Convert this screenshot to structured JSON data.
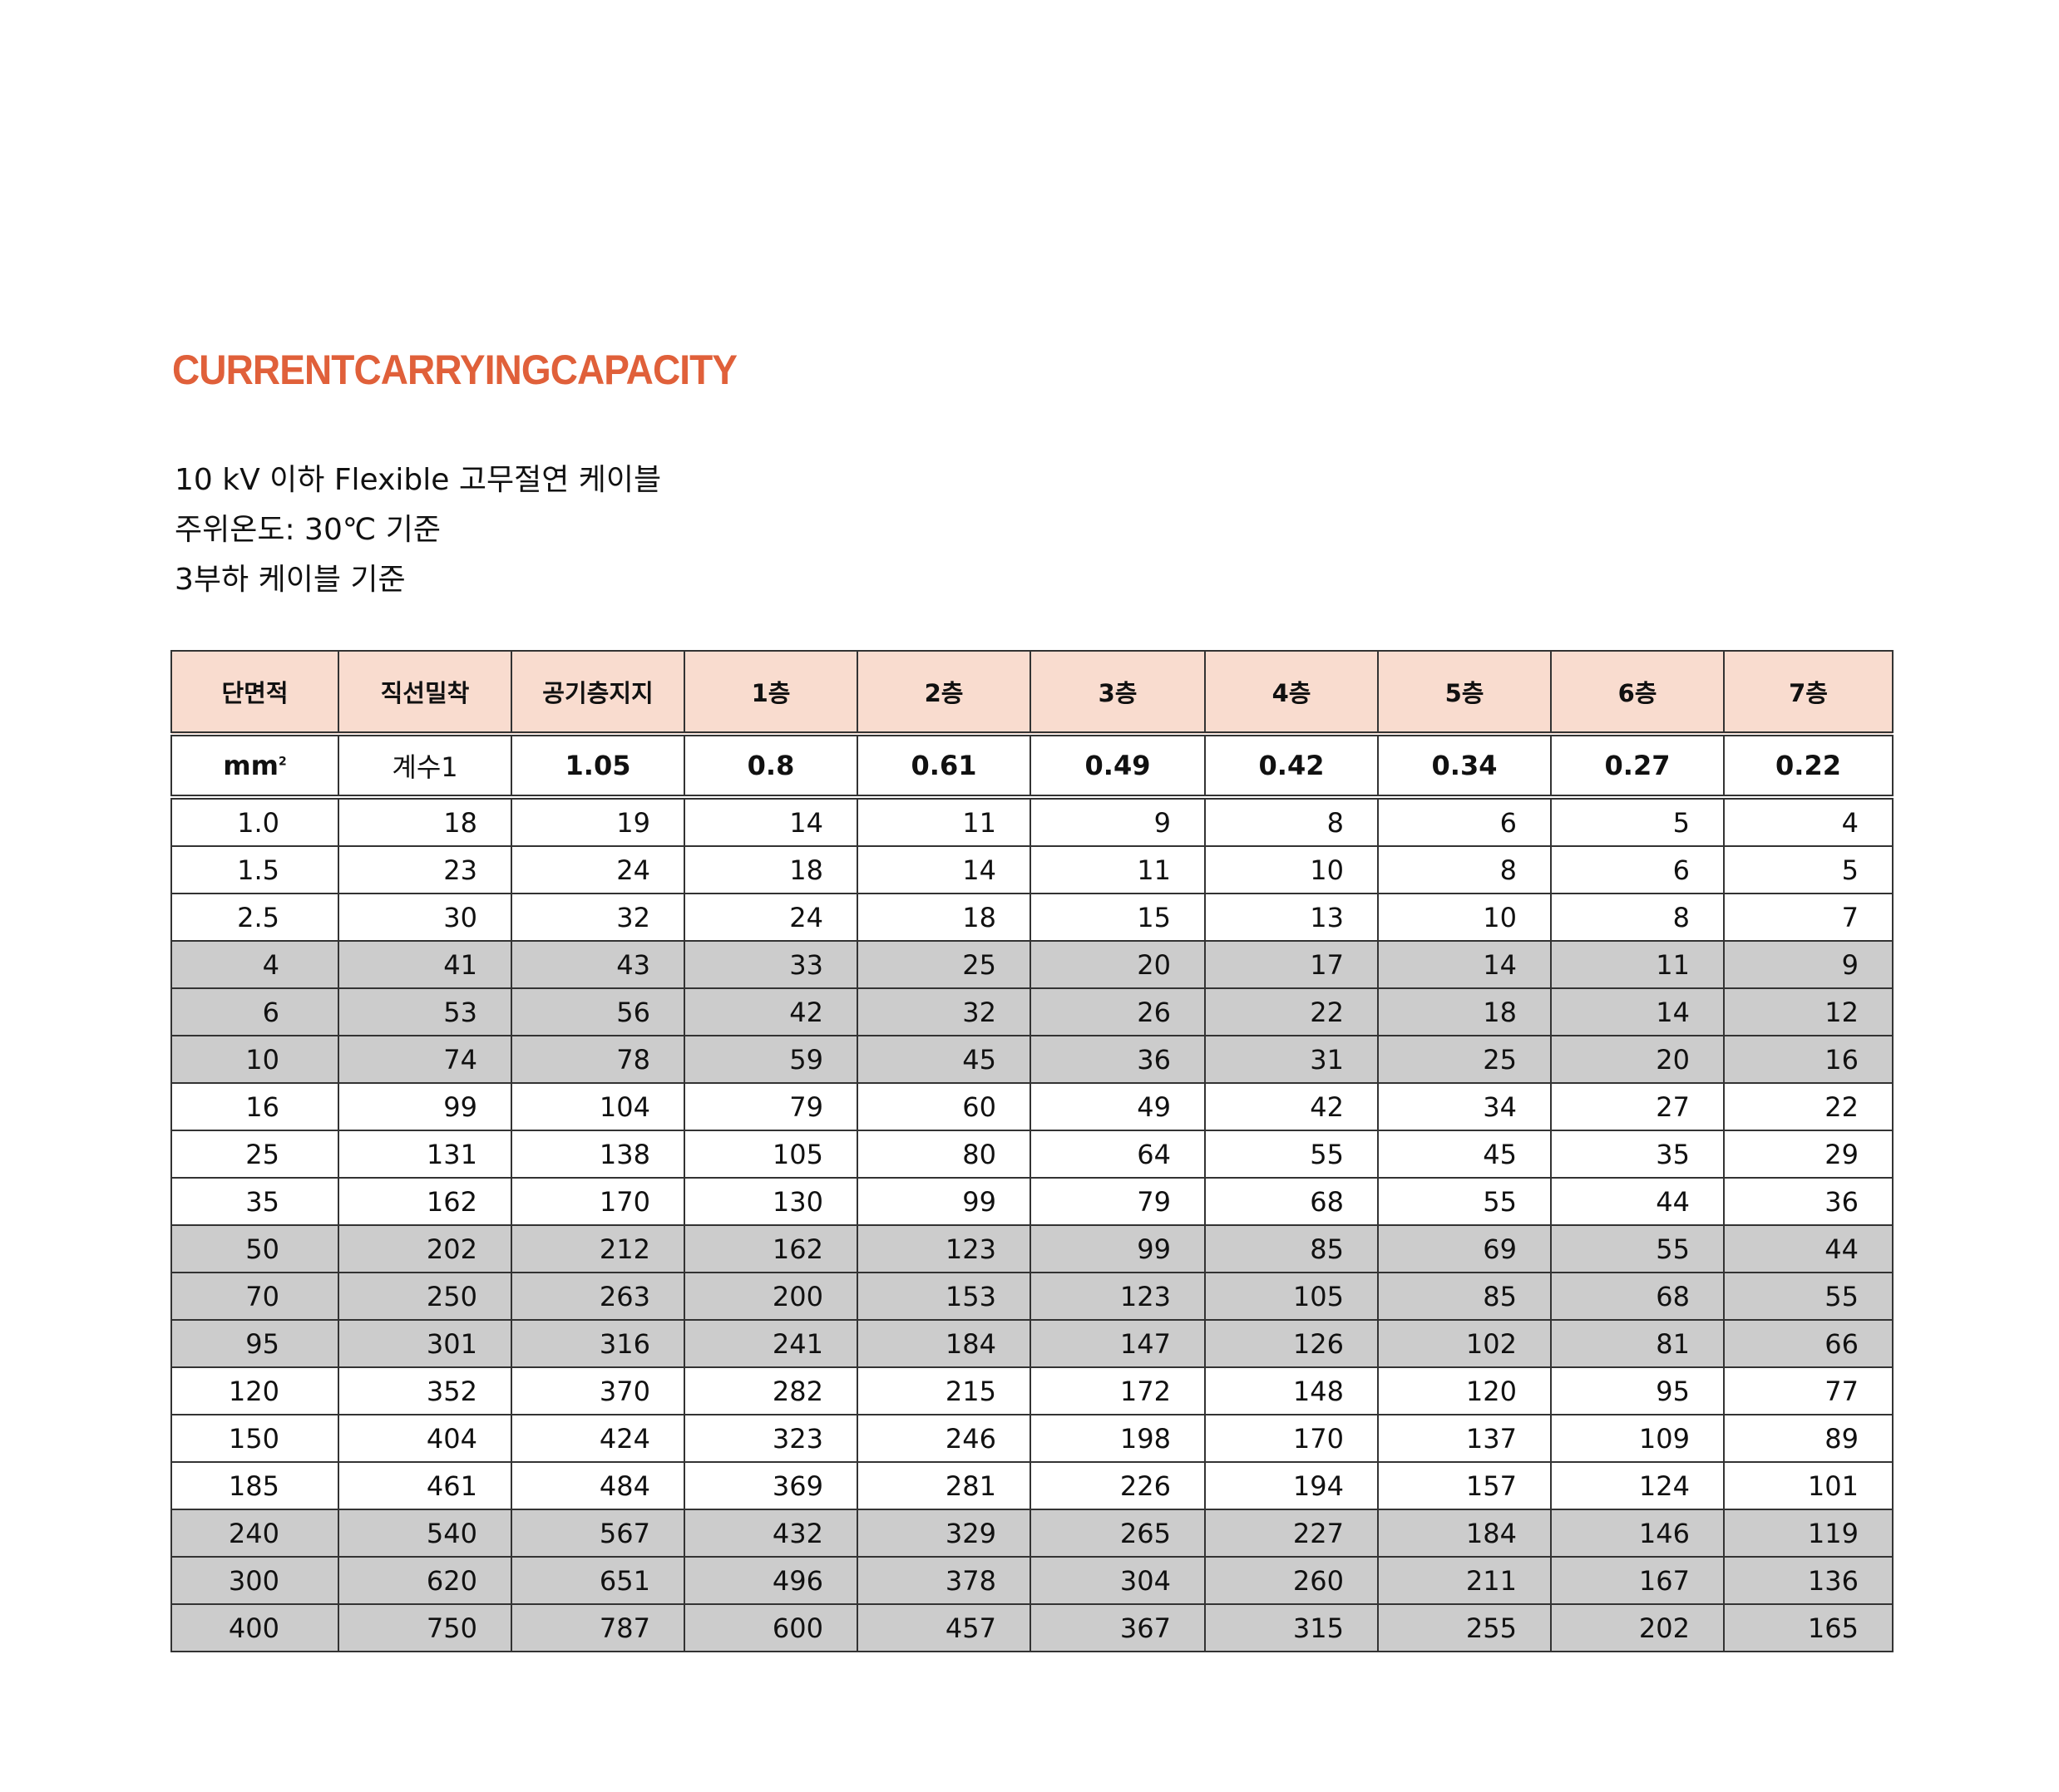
{
  "title": "CURRENTCARRYINGCAPACITY",
  "subtitle_lines": [
    "10  kV 이하 Flexible 고무절연 케이블",
    "주위온도:  30℃ 기준",
    "3부하 케이블 기준"
  ],
  "colors": {
    "title": "#e0603a",
    "header_bg": "#f9dccf",
    "shaded_row": "#cccccc"
  },
  "table": {
    "headers": [
      "단면적",
      "직선밀착",
      "공기층지지",
      "1층",
      "2층",
      "3층",
      "4층",
      "5층",
      "6층",
      "7층"
    ],
    "coef_row": {
      "unit": "mm",
      "unit_sup": "2",
      "label": "계수1",
      "values": [
        "1.05",
        "0.8",
        "0.61",
        "0.49",
        "0.42",
        "0.34",
        "0.27",
        "0.22"
      ]
    },
    "rows": [
      {
        "shaded": false,
        "cells": [
          "1.0",
          "18",
          "19",
          "14",
          "11",
          "9",
          "8",
          "6",
          "5",
          "4"
        ]
      },
      {
        "shaded": false,
        "cells": [
          "1.5",
          "23",
          "24",
          "18",
          "14",
          "11",
          "10",
          "8",
          "6",
          "5"
        ]
      },
      {
        "shaded": false,
        "cells": [
          "2.5",
          "30",
          "32",
          "24",
          "18",
          "15",
          "13",
          "10",
          "8",
          "7"
        ]
      },
      {
        "shaded": true,
        "cells": [
          "4",
          "41",
          "43",
          "33",
          "25",
          "20",
          "17",
          "14",
          "11",
          "9"
        ]
      },
      {
        "shaded": true,
        "cells": [
          "6",
          "53",
          "56",
          "42",
          "32",
          "26",
          "22",
          "18",
          "14",
          "12"
        ]
      },
      {
        "shaded": true,
        "cells": [
          "10",
          "74",
          "78",
          "59",
          "45",
          "36",
          "31",
          "25",
          "20",
          "16"
        ]
      },
      {
        "shaded": false,
        "cells": [
          "16",
          "99",
          "104",
          "79",
          "60",
          "49",
          "42",
          "34",
          "27",
          "22"
        ]
      },
      {
        "shaded": false,
        "cells": [
          "25",
          "131",
          "138",
          "105",
          "80",
          "64",
          "55",
          "45",
          "35",
          "29"
        ]
      },
      {
        "shaded": false,
        "cells": [
          "35",
          "162",
          "170",
          "130",
          "99",
          "79",
          "68",
          "55",
          "44",
          "36"
        ]
      },
      {
        "shaded": true,
        "cells": [
          "50",
          "202",
          "212",
          "162",
          "123",
          "99",
          "85",
          "69",
          "55",
          "44"
        ]
      },
      {
        "shaded": true,
        "cells": [
          "70",
          "250",
          "263",
          "200",
          "153",
          "123",
          "105",
          "85",
          "68",
          "55"
        ]
      },
      {
        "shaded": true,
        "cells": [
          "95",
          "301",
          "316",
          "241",
          "184",
          "147",
          "126",
          "102",
          "81",
          "66"
        ]
      },
      {
        "shaded": false,
        "cells": [
          "120",
          "352",
          "370",
          "282",
          "215",
          "172",
          "148",
          "120",
          "95",
          "77"
        ]
      },
      {
        "shaded": false,
        "cells": [
          "150",
          "404",
          "424",
          "323",
          "246",
          "198",
          "170",
          "137",
          "109",
          "89"
        ]
      },
      {
        "shaded": false,
        "cells": [
          "185",
          "461",
          "484",
          "369",
          "281",
          "226",
          "194",
          "157",
          "124",
          "101"
        ]
      },
      {
        "shaded": true,
        "cells": [
          "240",
          "540",
          "567",
          "432",
          "329",
          "265",
          "227",
          "184",
          "146",
          "119"
        ]
      },
      {
        "shaded": true,
        "cells": [
          "300",
          "620",
          "651",
          "496",
          "378",
          "304",
          "260",
          "211",
          "167",
          "136"
        ]
      },
      {
        "shaded": true,
        "cells": [
          "400",
          "750",
          "787",
          "600",
          "457",
          "367",
          "315",
          "255",
          "202",
          "165"
        ]
      }
    ]
  }
}
